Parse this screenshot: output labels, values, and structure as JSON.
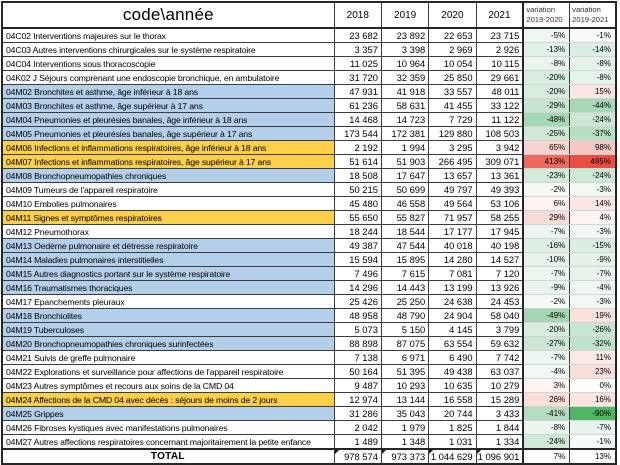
{
  "table": {
    "header": {
      "code_year_label": "code\\année",
      "years": [
        "2018",
        "2019",
        "2020",
        "2021"
      ],
      "variation1": {
        "line1": "variation",
        "line2": "2019-2020"
      },
      "variation2": {
        "line1": "variation",
        "line2": "2019-2021"
      }
    },
    "palette": {
      "white": "#ffffff",
      "blue": "#b4cfe9",
      "yellow": "#fccf4b",
      "strong_red": "#ec4d41",
      "strong_green": "#4fb567"
    },
    "rows": [
      {
        "label": "04C02 Interventions majeures sur le thorax",
        "bg": "white",
        "values": [
          "23 682",
          "23 892",
          "22 653",
          "23 715"
        ],
        "variations": [
          {
            "text": "-5%",
            "color": "#eff7f1"
          },
          {
            "text": "-1%",
            "color": "#f7fbf8"
          }
        ]
      },
      {
        "label": "04C03 Autres interventions chirurgicales sur le système respiratoire",
        "bg": "white",
        "values": [
          "3 357",
          "3 398",
          "2 969",
          "2 926"
        ],
        "variations": [
          {
            "text": "-13%",
            "color": "#e2f1e7"
          },
          {
            "text": "-14%",
            "color": "#dceee3"
          }
        ]
      },
      {
        "label": "04C04 Interventions sous thoracoscopie",
        "bg": "white",
        "values": [
          "11 025",
          "10 964",
          "10 054",
          "10 115"
        ],
        "variations": [
          {
            "text": "-8%",
            "color": "#eaf5ed"
          },
          {
            "text": "-8%",
            "color": "#e6f3ea"
          }
        ]
      },
      {
        "label": "04K02 J Séjours comprenant une endoscopie bronchique, en ambulatoire",
        "bg": "white",
        "values": [
          "31 720",
          "32 359",
          "25 850",
          "29 661"
        ],
        "variations": [
          {
            "text": "-20%",
            "color": "#d8edde"
          },
          {
            "text": "-8%",
            "color": "#e6f3ea"
          }
        ]
      },
      {
        "label": "04M02  Bronchites et asthme, âge inférieur à 18 ans",
        "bg": "blue",
        "values": [
          "47 931",
          "41 918",
          "33 557",
          "48 011"
        ],
        "variations": [
          {
            "text": "-20%",
            "color": "#d8edde"
          },
          {
            "text": "15%",
            "color": "#fae5e2"
          }
        ]
      },
      {
        "label": "04M03  Bronchites et asthme, âge supérieur à 17 ans",
        "bg": "blue",
        "values": [
          "61 236",
          "58 631",
          "41 455",
          "33 122"
        ],
        "variations": [
          {
            "text": "-29%",
            "color": "#c7e5d0"
          },
          {
            "text": "-44%",
            "color": "#a9d8b8"
          }
        ]
      },
      {
        "label": "04M04 Pneumonies et pleurésies banales, âge inférieur à 18 ans",
        "bg": "blue",
        "values": [
          "14 468",
          "14 723",
          "7 729",
          "11 122"
        ],
        "variations": [
          {
            "text": "-48%",
            "color": "#a6d7b5"
          },
          {
            "text": "-24%",
            "color": "#cce8d4"
          }
        ]
      },
      {
        "label": "04M05  Pneumonies et pleurésies banales, âge supérieur à 17 ans",
        "bg": "blue",
        "values": [
          "173 544",
          "172 381",
          "129 880",
          "108 503"
        ],
        "variations": [
          {
            "text": "-25%",
            "color": "#cfe9d6"
          },
          {
            "text": "-37%",
            "color": "#b5dec2"
          }
        ]
      },
      {
        "label": "04M06 Infections et inflammations respiratoires, âge inférieur à 18 ans",
        "bg": "yellow",
        "values": [
          "2 192",
          "1 994",
          "3 295",
          "3 942"
        ],
        "variations": [
          {
            "text": "65%",
            "color": "#f7d3cf"
          },
          {
            "text": "98%",
            "color": "#f5c8c4"
          }
        ]
      },
      {
        "label": "04M07 Infections et inflammations respiratoires, âge supérieur à 17 ans",
        "bg": "yellow",
        "values": [
          "51 614",
          "51 903",
          "266 495",
          "309 071"
        ],
        "variations": [
          {
            "text": "413%",
            "color": "#f0675c"
          },
          {
            "text": "495%",
            "color": "#ec4d41"
          }
        ]
      },
      {
        "label": "04M08 Bronchopneumopathies chroniques",
        "bg": "blue",
        "values": [
          "18 508",
          "17 647",
          "13 657",
          "13 361"
        ],
        "variations": [
          {
            "text": "-23%",
            "color": "#d2ead8"
          },
          {
            "text": "-24%",
            "color": "#cce8d4"
          }
        ]
      },
      {
        "label": "04M09 Tumeurs de l'appareil respiratoire",
        "bg": "white",
        "values": [
          "50 215",
          "50 699",
          "49 797",
          "49 393"
        ],
        "variations": [
          {
            "text": "-2%",
            "color": "#f5faf6"
          },
          {
            "text": "-3%",
            "color": "#f1f8f3"
          }
        ]
      },
      {
        "label": "04M10 Embolies pulmonaires",
        "bg": "white",
        "values": [
          "45 480",
          "46 558",
          "49 564",
          "53 106"
        ],
        "variations": [
          {
            "text": "6%",
            "color": "#fdf2ef"
          },
          {
            "text": "14%",
            "color": "#fbe6e3"
          }
        ]
      },
      {
        "label": "04M11 Signes et symptômes respiratoires",
        "bg": "yellow",
        "values": [
          "55 650",
          "55 827",
          "71 957",
          "58 255"
        ],
        "variations": [
          {
            "text": "29%",
            "color": "#f8dbd7"
          },
          {
            "text": "4%",
            "color": "#fdf4f1"
          }
        ]
      },
      {
        "label": "04M12 Pneumothorax",
        "bg": "white",
        "values": [
          "18 244",
          "18 544",
          "17 177",
          "17 945"
        ],
        "variations": [
          {
            "text": "-7%",
            "color": "#ecf6ee"
          },
          {
            "text": "-3%",
            "color": "#f1f8f3"
          }
        ]
      },
      {
        "label": "04M13 Oedème pulmonaire et détresse respiratoire",
        "bg": "blue",
        "values": [
          "49 387",
          "47 544",
          "40 018",
          "40 198"
        ],
        "variations": [
          {
            "text": "-16%",
            "color": "#deefe3"
          },
          {
            "text": "-15%",
            "color": "#dbeee1"
          }
        ]
      },
      {
        "label": "04M14 Maladies pulmonaires interstitielles",
        "bg": "blue",
        "values": [
          "15 594",
          "15 895",
          "14 280",
          "14 527"
        ],
        "variations": [
          {
            "text": "-10%",
            "color": "#e7f3ea"
          },
          {
            "text": "-9%",
            "color": "#e4f2e8"
          }
        ]
      },
      {
        "label": "04M15 Autres diagnostics portant sur le système respiratoire",
        "bg": "blue",
        "values": [
          "7 496",
          "7 615",
          "7 081",
          "7 120"
        ],
        "variations": [
          {
            "text": "-7%",
            "color": "#ecf6ee"
          },
          {
            "text": "-7%",
            "color": "#e8f4eb"
          }
        ]
      },
      {
        "label": "04M16 Traumatismes thoraciques",
        "bg": "blue",
        "values": [
          "14 296",
          "14 443",
          "13 199",
          "13 926"
        ],
        "variations": [
          {
            "text": "-9%",
            "color": "#e8f4ec"
          },
          {
            "text": "-4%",
            "color": "#eef7f0"
          }
        ]
      },
      {
        "label": "04M17 Epanchements pleuraux",
        "bg": "white",
        "values": [
          "25 426",
          "25 250",
          "24 638",
          "24 453"
        ],
        "variations": [
          {
            "text": "-2%",
            "color": "#f5faf6"
          },
          {
            "text": "-3%",
            "color": "#f1f8f3"
          }
        ]
      },
      {
        "label": "04M18  Bronchiolites",
        "bg": "blue",
        "values": [
          "48 958",
          "48 790",
          "24 904",
          "58 040"
        ],
        "variations": [
          {
            "text": "-49%",
            "color": "#a4d6b3"
          },
          {
            "text": "19%",
            "color": "#fae3df"
          }
        ]
      },
      {
        "label": "04M19 Tuberculoses",
        "bg": "blue",
        "values": [
          "5 073",
          "5 150",
          "4 145",
          "3 799"
        ],
        "variations": [
          {
            "text": "-20%",
            "color": "#d8edde"
          },
          {
            "text": "-26%",
            "color": "#c9e6d2"
          }
        ]
      },
      {
        "label": "04M20 Bronchopneumopathies chroniques surinfectées",
        "bg": "blue",
        "values": [
          "88 898",
          "87 075",
          "63 554",
          "59 632"
        ],
        "variations": [
          {
            "text": "-27%",
            "color": "#cbe7d3"
          },
          {
            "text": "-32%",
            "color": "#bfe2ca"
          }
        ]
      },
      {
        "label": "04M21 Suivis de greffe pulmonaire",
        "bg": "white",
        "values": [
          "7 138",
          "6 971",
          "6 490",
          "7 742"
        ],
        "variations": [
          {
            "text": "-7%",
            "color": "#ecf6ee"
          },
          {
            "text": "11%",
            "color": "#fbeae6"
          }
        ]
      },
      {
        "label": "04M22 Explorations et surveillance pour affections de l'appareil respiratoire",
        "bg": "white",
        "values": [
          "50 164",
          "51 395",
          "49 438",
          "63 037"
        ],
        "variations": [
          {
            "text": "-4%",
            "color": "#f1f8f3"
          },
          {
            "text": "23%",
            "color": "#f9dfdb"
          }
        ]
      },
      {
        "label": "04M23 Autres symptômes et recours aux soins de la CMD 04",
        "bg": "white",
        "values": [
          "9 487",
          "10 293",
          "10 635",
          "10 279"
        ],
        "variations": [
          {
            "text": "3%",
            "color": "#fef5f3"
          },
          {
            "text": "0%",
            "color": "#ffffff"
          }
        ]
      },
      {
        "label": "04M24 Affections de la CMD 04 avec décès : séjours de moins de 2 jours",
        "bg": "yellow",
        "values": [
          "12 974",
          "13 144",
          "16 558",
          "15 289"
        ],
        "variations": [
          {
            "text": "26%",
            "color": "#f8ddd9"
          },
          {
            "text": "16%",
            "color": "#fae5e1"
          }
        ]
      },
      {
        "label": "04M25 Grippes",
        "bg": "blue",
        "values": [
          "31 286",
          "35 043",
          "20 744",
          "3 433"
        ],
        "variations": [
          {
            "text": "-41%",
            "color": "#b3dcc0"
          },
          {
            "text": "-90%",
            "color": "#4fb567"
          }
        ]
      },
      {
        "label": "04M26 Fibroses kystiques avec manifestations pulmonaires",
        "bg": "white",
        "values": [
          "2 042",
          "1 979",
          "1 825",
          "1 844"
        ],
        "variations": [
          {
            "text": "-8%",
            "color": "#eaf5ed"
          },
          {
            "text": "-7%",
            "color": "#e8f4eb"
          }
        ]
      },
      {
        "label": "04M27 Autres affections respiratoires concernant majoritairement la petite enfance",
        "bg": "white",
        "values": [
          "1 489",
          "1 348",
          "1 031",
          "1 334"
        ],
        "variations": [
          {
            "text": "-24%",
            "color": "#d1e9d7"
          },
          {
            "text": "-1%",
            "color": "#f7fbf8"
          }
        ]
      }
    ],
    "total": {
      "label": "TOTAL",
      "values": [
        "978 574",
        "973 373",
        "1 044 629",
        "1 096 901"
      ],
      "variations": [
        {
          "text": "7%",
          "color": "#ffffff"
        },
        {
          "text": "13%",
          "color": "#ffffff"
        }
      ]
    }
  }
}
